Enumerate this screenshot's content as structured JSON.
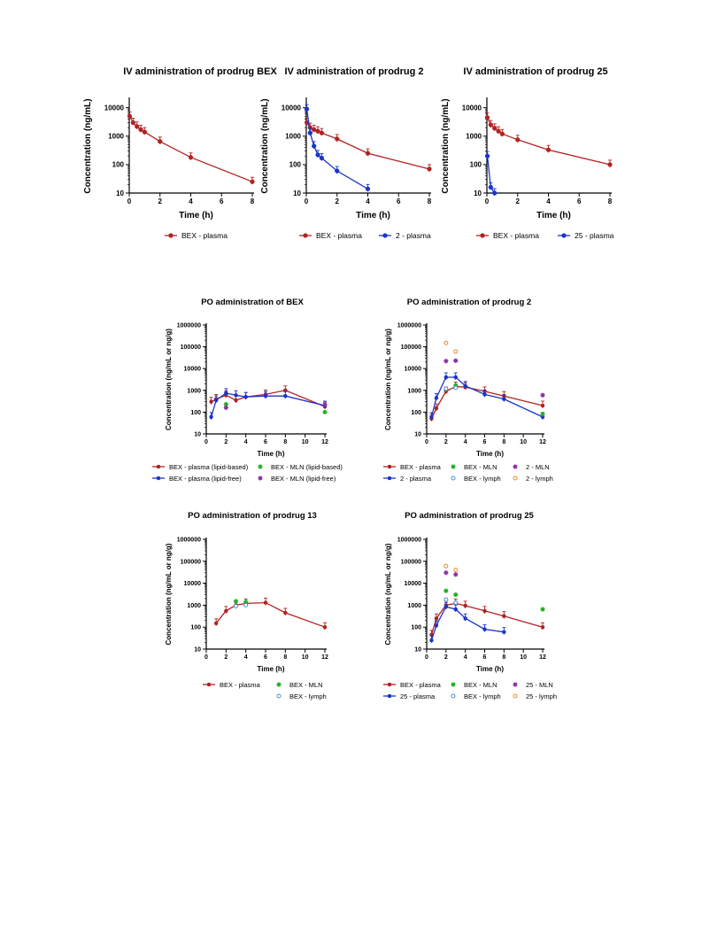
{
  "chart_data": [
    {
      "type": "line",
      "title": "IV administration of prodrug BEX",
      "xlabel": "Time (h)",
      "ylabel": "Concentration (ng/mL)",
      "xlim": [
        0,
        8
      ],
      "ylim": [
        10,
        20000
      ],
      "yscale": "log",
      "xticks": [
        0,
        2,
        4,
        6,
        8
      ],
      "yticks": [
        10,
        100,
        1000,
        10000
      ],
      "series": [
        {
          "name": "BEX - plasma",
          "color": "#b22222",
          "marker": "filled",
          "x": [
            0.033,
            0.25,
            0.5,
            0.75,
            1,
            2,
            4,
            8
          ],
          "y": [
            5000,
            3000,
            2200,
            1700,
            1400,
            650,
            180,
            25
          ]
        }
      ]
    },
    {
      "type": "line",
      "title": "IV administration of prodrug 2",
      "xlabel": "Time (h)",
      "ylabel": "Concentration (ng/mL)",
      "xlim": [
        0,
        8
      ],
      "ylim": [
        10,
        20000
      ],
      "yscale": "log",
      "xticks": [
        0,
        2,
        4,
        6,
        8
      ],
      "yticks": [
        10,
        100,
        1000,
        10000
      ],
      "series": [
        {
          "name": "BEX - plasma",
          "color": "#b22222",
          "marker": "filled",
          "x": [
            0.033,
            0.25,
            0.5,
            0.75,
            1,
            2,
            4,
            8
          ],
          "y": [
            3000,
            2000,
            1700,
            1500,
            1300,
            800,
            250,
            70
          ]
        },
        {
          "name": "2 - plasma",
          "color": "#1a35c9",
          "marker": "filled",
          "x": [
            0.033,
            0.25,
            0.5,
            0.75,
            1,
            2,
            4
          ],
          "y": [
            9000,
            1300,
            450,
            220,
            170,
            60,
            14
          ]
        }
      ]
    },
    {
      "type": "line",
      "title": "IV administration of prodrug 25",
      "xlabel": "Time (h)",
      "ylabel": "Concentration (ng/mL)",
      "xlim": [
        0,
        8
      ],
      "ylim": [
        10,
        20000
      ],
      "yscale": "log",
      "xticks": [
        0,
        2,
        4,
        6,
        8
      ],
      "yticks": [
        10,
        100,
        1000,
        10000
      ],
      "series": [
        {
          "name": "BEX - plasma",
          "color": "#b22222",
          "marker": "filled",
          "x": [
            0.033,
            0.25,
            0.5,
            0.75,
            1,
            2,
            4,
            8
          ],
          "y": [
            4500,
            2500,
            1900,
            1500,
            1200,
            750,
            330,
            100
          ]
        },
        {
          "name": "25 - plasma",
          "color": "#1a35c9",
          "marker": "filled",
          "x": [
            0.033,
            0.25,
            0.5
          ],
          "y": [
            200,
            16,
            10
          ]
        }
      ]
    },
    {
      "type": "line",
      "title": "PO administration of BEX",
      "xlabel": "Time (h)",
      "ylabel": "Concentration (ng/mL or ng/g)",
      "xlim": [
        0,
        12
      ],
      "ylim": [
        10,
        1000000
      ],
      "yscale": "log",
      "xticks": [
        0,
        2,
        4,
        6,
        8,
        10,
        12
      ],
      "yticks": [
        10,
        100,
        1000,
        10000,
        100000,
        1000000
      ],
      "series": [
        {
          "name": "BEX - plasma (lipid-based)",
          "color": "#b22222",
          "marker": "filled",
          "line": true,
          "x": [
            0.5,
            1,
            2,
            3,
            4,
            6,
            8,
            12
          ],
          "y": [
            300,
            400,
            600,
            350,
            500,
            650,
            1000,
            180
          ]
        },
        {
          "name": "BEX - plasma (lipid-free)",
          "color": "#1a35c9",
          "marker": "filled",
          "line": true,
          "x": [
            0.5,
            1,
            2,
            3,
            4,
            6,
            8,
            12
          ],
          "y": [
            60,
            350,
            750,
            600,
            500,
            550,
            550,
            200
          ]
        },
        {
          "name": "BEX - MLN (lipid-based)",
          "color": "#22b022",
          "marker": "star",
          "line": false,
          "x": [
            2,
            12
          ],
          "y": [
            230,
            100
          ]
        },
        {
          "name": "BEX - MLN (lipid-free)",
          "color": "#8b2fa6",
          "marker": "star",
          "line": false,
          "x": [
            2,
            12
          ],
          "y": [
            160,
            220
          ]
        }
      ]
    },
    {
      "type": "line",
      "title": "PO administration of prodrug 2",
      "xlabel": "Time (h)",
      "ylabel": "Concentration (ng/mL or ng/g)",
      "xlim": [
        0,
        12
      ],
      "ylim": [
        10,
        1000000
      ],
      "yscale": "log",
      "xticks": [
        0,
        2,
        4,
        6,
        8,
        10,
        12
      ],
      "yticks": [
        10,
        100,
        1000,
        10000,
        100000,
        1000000
      ],
      "series": [
        {
          "name": "BEX - plasma",
          "color": "#b22222",
          "marker": "filled",
          "line": true,
          "x": [
            0.5,
            1,
            2,
            3,
            4,
            6,
            8,
            12
          ],
          "y": [
            50,
            150,
            900,
            1500,
            1400,
            900,
            550,
            200
          ]
        },
        {
          "name": "2 - plasma",
          "color": "#1a35c9",
          "marker": "filled",
          "line": true,
          "x": [
            0.5,
            1,
            2,
            3,
            4,
            6,
            8,
            12
          ],
          "y": [
            60,
            450,
            4000,
            4000,
            1600,
            650,
            400,
            60
          ]
        },
        {
          "name": "BEX - MLN",
          "color": "#22b022",
          "marker": "star",
          "line": false,
          "x": [
            2,
            3,
            12
          ],
          "y": [
            1100,
            1700,
            80
          ]
        },
        {
          "name": "BEX - lymph",
          "color": "#4a8fd6",
          "marker": "open",
          "line": false,
          "x": [
            2,
            3
          ],
          "y": [
            1200,
            1300
          ]
        },
        {
          "name": "2 - MLN",
          "color": "#8b2fa6",
          "marker": "star",
          "line": false,
          "x": [
            2,
            3,
            12
          ],
          "y": [
            22000,
            23000,
            600
          ]
        },
        {
          "name": "2 - lymph",
          "color": "#e8892a",
          "marker": "open",
          "line": false,
          "x": [
            2,
            3
          ],
          "y": [
            150000,
            60000
          ]
        }
      ]
    },
    {
      "type": "line",
      "title": "PO administration of prodrug 13",
      "xlabel": "Time (h)",
      "ylabel": "Concentration (ng/mL or ng/g)",
      "xlim": [
        0,
        12
      ],
      "ylim": [
        10,
        1000000
      ],
      "yscale": "log",
      "xticks": [
        0,
        2,
        4,
        6,
        8,
        10,
        12
      ],
      "yticks": [
        10,
        100,
        1000,
        10000,
        100000,
        1000000
      ],
      "series": [
        {
          "name": "BEX - plasma",
          "color": "#b22222",
          "marker": "filled",
          "line": true,
          "x": [
            1,
            2,
            3,
            4,
            6,
            8,
            12
          ],
          "y": [
            150,
            550,
            1000,
            1200,
            1300,
            450,
            100
          ]
        },
        {
          "name": "BEX - MLN",
          "color": "#22b022",
          "marker": "star",
          "line": false,
          "x": [
            3,
            4
          ],
          "y": [
            1500,
            1400
          ]
        },
        {
          "name": "BEX - lymph",
          "color": "#4a8fd6",
          "marker": "open",
          "line": false,
          "x": [
            3,
            4
          ],
          "y": [
            900,
            1000
          ]
        }
      ]
    },
    {
      "type": "line",
      "title": "PO administration of prodrug 25",
      "xlabel": "Time (h)",
      "ylabel": "Concentration (ng/mL or ng/g)",
      "xlim": [
        0,
        12
      ],
      "ylim": [
        10,
        1000000
      ],
      "yscale": "log",
      "xticks": [
        0,
        2,
        4,
        6,
        8,
        10,
        12
      ],
      "yticks": [
        10,
        100,
        1000,
        10000,
        100000,
        1000000
      ],
      "series": [
        {
          "name": "BEX - plasma",
          "color": "#b22222",
          "marker": "filled",
          "line": true,
          "x": [
            0.5,
            1,
            2,
            3,
            4,
            6,
            8,
            12
          ],
          "y": [
            45,
            250,
            1000,
            1200,
            950,
            550,
            320,
            100
          ]
        },
        {
          "name": "25 - plasma",
          "color": "#1a35c9",
          "marker": "filled",
          "line": true,
          "x": [
            0.5,
            1,
            2,
            3,
            4,
            6,
            8
          ],
          "y": [
            25,
            120,
            850,
            650,
            250,
            80,
            60
          ]
        },
        {
          "name": "BEX - MLN",
          "color": "#22b022",
          "marker": "star",
          "line": false,
          "x": [
            2,
            3,
            12
          ],
          "y": [
            4500,
            3000,
            650
          ]
        },
        {
          "name": "BEX - lymph",
          "color": "#4a8fd6",
          "marker": "open",
          "line": false,
          "x": [
            2,
            3
          ],
          "y": [
            1800,
            1300
          ]
        },
        {
          "name": "25 - MLN",
          "color": "#8b2fa6",
          "marker": "star",
          "line": false,
          "x": [
            2,
            3
          ],
          "y": [
            30000,
            25000
          ]
        },
        {
          "name": "25 - lymph",
          "color": "#e8892a",
          "marker": "open",
          "line": false,
          "x": [
            2,
            3
          ],
          "y": [
            60000,
            40000
          ]
        }
      ]
    }
  ]
}
